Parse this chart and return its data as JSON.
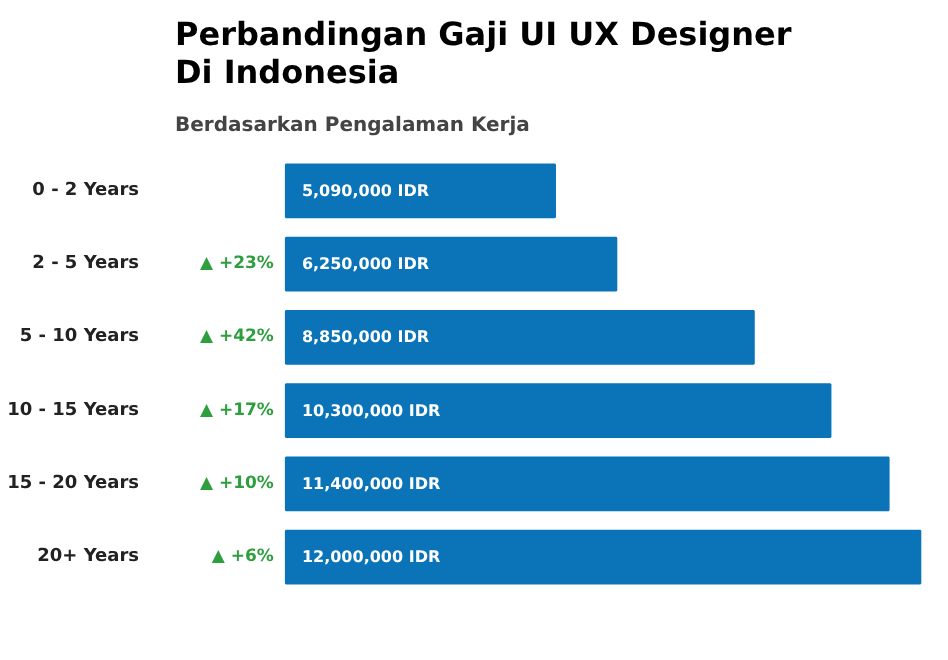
{
  "chart_data": {
    "type": "bar",
    "orientation": "horizontal",
    "title": "Perbandingan Gaji UI UX Designer Di Indonesia",
    "subtitle": "Berdasarkan Pengalaman Kerja",
    "categories": [
      "0 - 2 Years",
      "2 - 5 Years",
      "5 - 10 Years",
      "10 - 15 Years",
      "15 - 20 Years",
      "20+ Years"
    ],
    "values": [
      5090000,
      6250000,
      8850000,
      10300000,
      11400000,
      12000000
    ],
    "value_labels": [
      "5,090,000 IDR",
      "6,250,000 IDR",
      "8,850,000 IDR",
      "10,300,000 IDR",
      "11,400,000 IDR",
      "12,000,000 IDR"
    ],
    "color": "#0b74b8",
    "grid": false,
    "annotations": [
      "▲ +23%",
      "▲ +42%",
      "▲ +17%",
      "▲ +10%",
      "▲ +6%"
    ]
  }
}
